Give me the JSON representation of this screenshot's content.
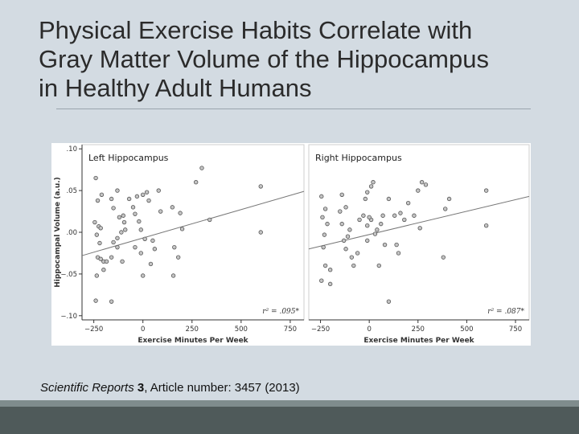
{
  "slide": {
    "title_lines": [
      "Physical Exercise Habits Correlate with",
      "Gray Matter Volume of the Hippocampus",
      "in Healthy Adult Humans"
    ],
    "citation": {
      "journal": "Scientific Reports",
      "volume": "3",
      "rest": ", Article number: 3457 (2013)"
    }
  },
  "colors": {
    "background": "#d3dbe2",
    "point_fill": "#c4c4c4",
    "point_stroke": "#555555",
    "line": "#777777",
    "footer_dark": "#4f5a5a",
    "footer_light": "#7f8c8d"
  },
  "chart_data": [
    {
      "type": "scatter",
      "title": "Left Hippocampus",
      "xlabel": "Exercise Minutes Per Week",
      "ylabel": "Hippocampal Volume (a.u.)",
      "xlim": [
        -310,
        820
      ],
      "ylim": [
        -0.105,
        0.105
      ],
      "xticks": [
        -250,
        0,
        250,
        500,
        750
      ],
      "xtick_labels": [
        "−250",
        "0",
        "250",
        "500",
        "750"
      ],
      "yticks": [
        0.1,
        0.05,
        0.0,
        -0.05,
        -0.1
      ],
      "ytick_labels": [
        ".10",
        ".05",
        ".00",
        "−.05",
        "−.10"
      ],
      "annotation": "r² = .095*",
      "regression": [
        [
          -310,
          -0.028
        ],
        [
          820,
          0.049
        ]
      ],
      "points": [
        [
          -240,
          0.065
        ],
        [
          -230,
          0.038
        ],
        [
          -210,
          0.045
        ],
        [
          -245,
          0.012
        ],
        [
          -225,
          0.007
        ],
        [
          -215,
          0.005
        ],
        [
          -235,
          -0.003
        ],
        [
          -220,
          -0.013
        ],
        [
          -230,
          -0.03
        ],
        [
          -215,
          -0.032
        ],
        [
          -200,
          -0.035
        ],
        [
          -235,
          -0.052
        ],
        [
          -200,
          -0.045
        ],
        [
          -185,
          -0.035
        ],
        [
          -240,
          -0.082
        ],
        [
          -160,
          -0.083
        ],
        [
          -160,
          0.04
        ],
        [
          -150,
          0.029
        ],
        [
          -130,
          0.05
        ],
        [
          -120,
          0.018
        ],
        [
          -100,
          0.02
        ],
        [
          -95,
          0.012
        ],
        [
          -110,
          0.0
        ],
        [
          -90,
          0.003
        ],
        [
          -130,
          -0.007
        ],
        [
          -150,
          -0.012
        ],
        [
          -130,
          -0.018
        ],
        [
          -160,
          -0.03
        ],
        [
          -105,
          -0.035
        ],
        [
          -70,
          0.04
        ],
        [
          -50,
          0.03
        ],
        [
          -40,
          0.022
        ],
        [
          -20,
          0.013
        ],
        [
          -30,
          0.043
        ],
        [
          0,
          0.045
        ],
        [
          20,
          0.048
        ],
        [
          30,
          0.038
        ],
        [
          -10,
          0.003
        ],
        [
          -40,
          -0.018
        ],
        [
          -10,
          -0.025
        ],
        [
          0,
          -0.052
        ],
        [
          40,
          -0.038
        ],
        [
          60,
          -0.02
        ],
        [
          90,
          0.025
        ],
        [
          80,
          0.05
        ],
        [
          10,
          -0.008
        ],
        [
          50,
          -0.01
        ],
        [
          150,
          0.03
        ],
        [
          155,
          -0.052
        ],
        [
          160,
          -0.018
        ],
        [
          180,
          -0.03
        ],
        [
          190,
          0.023
        ],
        [
          200,
          0.004
        ],
        [
          270,
          0.06
        ],
        [
          300,
          0.077
        ],
        [
          340,
          0.015
        ],
        [
          600,
          0.055
        ],
        [
          600,
          0.0
        ]
      ]
    },
    {
      "type": "scatter",
      "title": "Right Hippocampus",
      "xlabel": "Exercise Minutes Per Week",
      "ylabel": "",
      "xlim": [
        -310,
        820
      ],
      "ylim": [
        -0.105,
        0.105
      ],
      "xticks": [
        -250,
        0,
        250,
        500,
        750
      ],
      "xtick_labels": [
        "−250",
        "0",
        "250",
        "500",
        "750"
      ],
      "annotation": "r² = .087*",
      "regression": [
        [
          -310,
          -0.02
        ],
        [
          820,
          0.043
        ]
      ],
      "points": [
        [
          -245,
          0.043
        ],
        [
          -240,
          0.018
        ],
        [
          -225,
          0.028
        ],
        [
          -215,
          0.01
        ],
        [
          -230,
          -0.003
        ],
        [
          -235,
          -0.018
        ],
        [
          -225,
          -0.04
        ],
        [
          -200,
          -0.045
        ],
        [
          -245,
          -0.058
        ],
        [
          -200,
          -0.062
        ],
        [
          -150,
          0.025
        ],
        [
          -140,
          0.045
        ],
        [
          -120,
          0.03
        ],
        [
          -130,
          -0.01
        ],
        [
          -140,
          0.01
        ],
        [
          -120,
          -0.02
        ],
        [
          -110,
          -0.005
        ],
        [
          -100,
          0.003
        ],
        [
          -90,
          -0.03
        ],
        [
          -80,
          -0.04
        ],
        [
          -60,
          -0.025
        ],
        [
          -50,
          0.015
        ],
        [
          -30,
          0.02
        ],
        [
          -10,
          0.008
        ],
        [
          -20,
          0.04
        ],
        [
          -10,
          0.048
        ],
        [
          10,
          0.055
        ],
        [
          20,
          0.06
        ],
        [
          -10,
          -0.01
        ],
        [
          10,
          0.015
        ],
        [
          40,
          0.003
        ],
        [
          60,
          0.01
        ],
        [
          30,
          -0.002
        ],
        [
          0,
          0.018
        ],
        [
          70,
          0.02
        ],
        [
          50,
          -0.04
        ],
        [
          80,
          -0.015
        ],
        [
          100,
          0.04
        ],
        [
          130,
          0.02
        ],
        [
          140,
          -0.015
        ],
        [
          150,
          -0.025
        ],
        [
          160,
          0.023
        ],
        [
          180,
          0.015
        ],
        [
          200,
          0.035
        ],
        [
          230,
          0.02
        ],
        [
          250,
          0.05
        ],
        [
          260,
          0.005
        ],
        [
          270,
          0.06
        ],
        [
          290,
          0.057
        ],
        [
          390,
          0.028
        ],
        [
          410,
          0.04
        ],
        [
          380,
          -0.03
        ],
        [
          600,
          0.05
        ],
        [
          600,
          0.008
        ],
        [
          100,
          -0.083
        ]
      ]
    }
  ]
}
